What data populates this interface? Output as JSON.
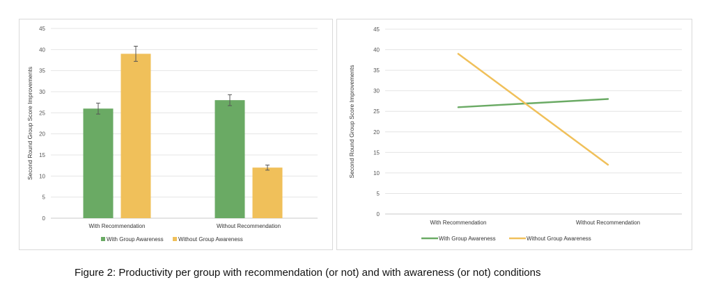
{
  "chart_data": [
    {
      "type": "bar",
      "categories": [
        "With Recommendation",
        "Without Recommendation"
      ],
      "series": [
        {
          "name": "With Group Awareness",
          "values": [
            26,
            28
          ],
          "errors": [
            1.3,
            1.3
          ],
          "color": "#6aaa64"
        },
        {
          "name": "Without Group Awareness",
          "values": [
            39,
            12
          ],
          "errors": [
            1.8,
            0.6
          ],
          "color": "#f0c05a"
        }
      ],
      "ylabel": "Second Round Group Score Improvements",
      "ylim": [
        0,
        45
      ],
      "yticks": [
        0,
        5,
        10,
        15,
        20,
        25,
        30,
        35,
        40,
        45
      ],
      "grid": true,
      "legend": "bottom"
    },
    {
      "type": "line",
      "categories": [
        "With Recommendation",
        "Without Recommendation"
      ],
      "series": [
        {
          "name": "With Group Awareness",
          "values": [
            26,
            28
          ],
          "color": "#6aaa64"
        },
        {
          "name": "Without Group Awareness",
          "values": [
            39,
            12
          ],
          "color": "#f0c05a"
        }
      ],
      "ylabel": "Second Round Group Score Improvements",
      "ylim": [
        0,
        45
      ],
      "yticks": [
        0,
        5,
        10,
        15,
        20,
        25,
        30,
        35,
        40,
        45
      ],
      "grid": true,
      "legend": "bottom"
    }
  ],
  "caption": "Figure 2: Productivity per group with recommendation (or not) and with awareness (or not) conditions"
}
